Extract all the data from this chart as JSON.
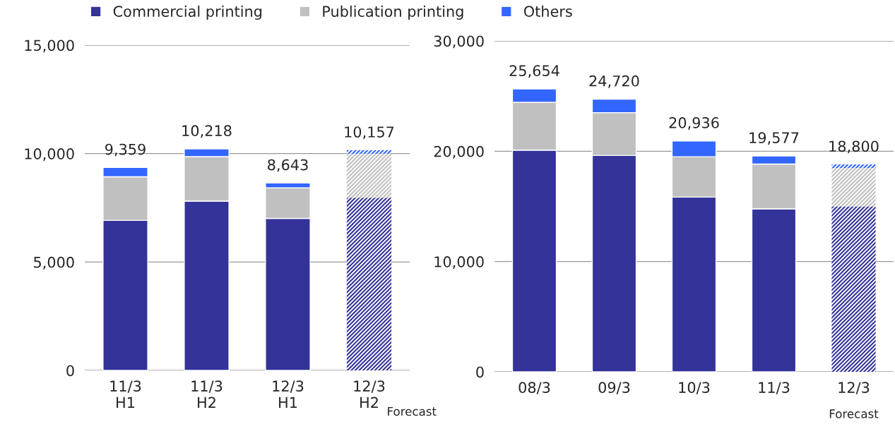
{
  "chart_data": [
    {
      "type": "bar",
      "stacked": true,
      "legend": "top",
      "grid": "y",
      "categories": [
        "11/3\nH1",
        "11/3\nH2",
        "12/3\nH1",
        "12/3\nH2"
      ],
      "series": [
        {
          "name": "Commercial printing",
          "color": "#333399",
          "values": [
            6920,
            7810,
            7010,
            7960
          ]
        },
        {
          "name": "Publication printing",
          "color": "#c0c0c0",
          "values": [
            2010,
            2050,
            1410,
            2040
          ]
        },
        {
          "name": "Others",
          "color": "#3366ff",
          "values": [
            429,
            358,
            223,
            157
          ]
        }
      ],
      "totals": [
        "9,359",
        "10,218",
        "8,643",
        "10,157"
      ],
      "ylim": [
        0,
        15000
      ],
      "yticks": [
        0,
        {
          "value": 5000,
          "label": "5,000"
        },
        {
          "value": 10000,
          "label": "10,000"
        },
        {
          "value": 15000,
          "label": "15,000"
        }
      ],
      "annotations": [
        "Forecast"
      ]
    },
    {
      "type": "bar",
      "stacked": true,
      "grid": "y",
      "categories": [
        "08/3",
        "09/3",
        "10/3",
        "11/3",
        "12/3"
      ],
      "series": [
        {
          "color": "#333399",
          "values": [
            20100,
            19610,
            15840,
            14780,
            15000
          ]
        },
        {
          "color": "#c0c0c0",
          "values": [
            4340,
            3890,
            3660,
            4060,
            3490
          ]
        },
        {
          "color": "#3366ff",
          "values": [
            1214,
            1220,
            1436,
            737,
            310
          ]
        }
      ],
      "totals": [
        "25,654",
        "24,720",
        "20,936",
        "19,577",
        "18,800"
      ],
      "ylim": [
        0,
        30000
      ],
      "yticks": [
        0,
        {
          "value": 10000,
          "label": "10,000"
        },
        {
          "value": 20000,
          "label": "20,000"
        },
        {
          "value": 30000,
          "label": "30,000"
        }
      ],
      "annotations": [
        "Forecast"
      ]
    }
  ]
}
